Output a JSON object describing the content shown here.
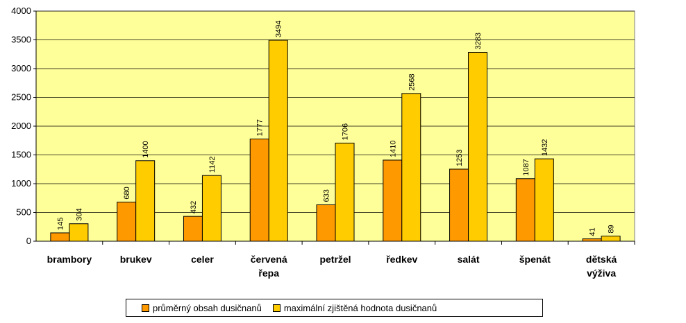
{
  "chart_data": {
    "type": "bar",
    "categories": [
      [
        "brambory"
      ],
      [
        "brukev"
      ],
      [
        "celer"
      ],
      [
        "červená",
        "řepa"
      ],
      [
        "petržel"
      ],
      [
        "ředkev"
      ],
      [
        "salát"
      ],
      [
        "špenát"
      ],
      [
        "dětská",
        "výživa"
      ]
    ],
    "series": [
      {
        "name": "průměrný obsah dusičnanů",
        "color": "#FF9900",
        "values": [
          145,
          680,
          432,
          1777,
          633,
          1410,
          1253,
          1087,
          41
        ]
      },
      {
        "name": "maximální zjištěná hodnota dusičnanů",
        "color": "#FFCC00",
        "values": [
          304,
          1400,
          1142,
          3494,
          1706,
          2568,
          3283,
          1432,
          89
        ]
      }
    ],
    "ylim": [
      0,
      4000
    ],
    "yticks": [
      0,
      500,
      1000,
      1500,
      2000,
      2500,
      3000,
      3500,
      4000
    ],
    "grid": true,
    "plot_background": "#FFFF99",
    "legend_position": "bottom"
  }
}
